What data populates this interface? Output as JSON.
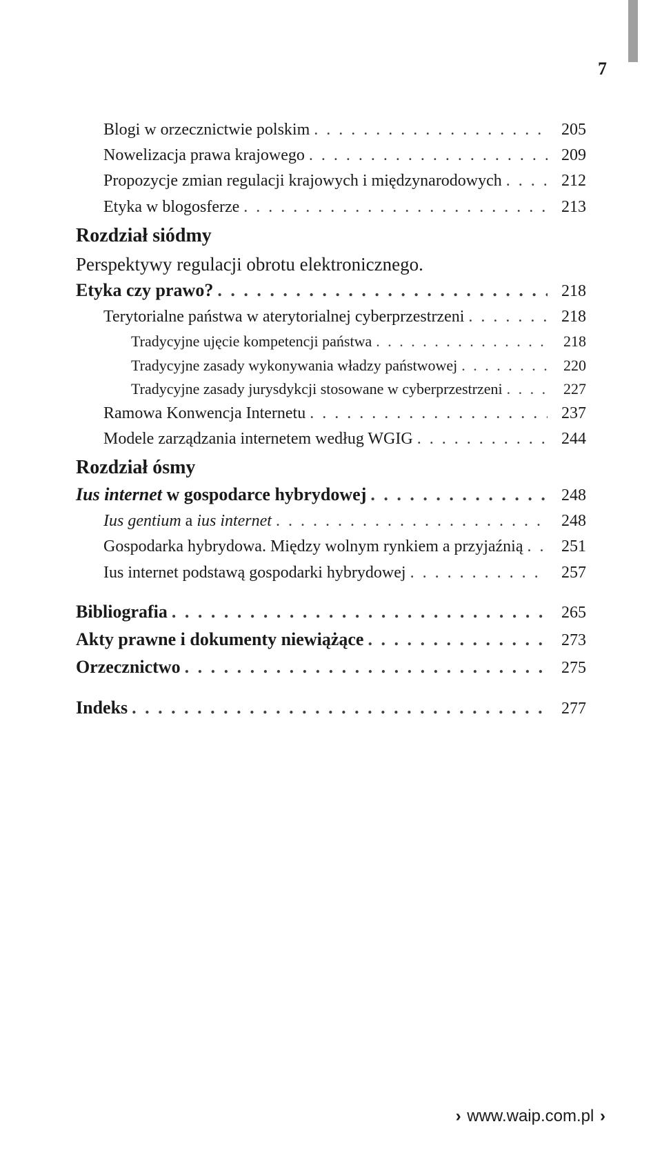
{
  "page_number": "7",
  "footer_url": "www.waip.com.pl",
  "fonts": {
    "body_family": "Georgia/serif",
    "footer_family": "Arial/sans-serif",
    "base_size_pt": 12
  },
  "colors": {
    "text": "#1a1a1a",
    "dots": "#404040",
    "tab": "#a0a0a0",
    "background": "#ffffff"
  },
  "entries": [
    {
      "type": "item",
      "level": 1,
      "label": "Blogi w orzecznictwie polskim",
      "page": "205"
    },
    {
      "type": "item",
      "level": 1,
      "label": "Nowelizacja prawa krajowego",
      "page": "209"
    },
    {
      "type": "item",
      "level": 1,
      "label": "Propozycje zmian regulacji krajowych i międzynarodowych",
      "page": "212"
    },
    {
      "type": "item",
      "level": 1,
      "label": "Etyka w blogosferze",
      "page": "213"
    },
    {
      "type": "chapter",
      "heading": "Rozdział siódmy",
      "subtitle": "Perspektywy regulacji obrotu elektronicznego."
    },
    {
      "type": "item",
      "level": 0,
      "label": "Etyka czy prawo?",
      "page": "218"
    },
    {
      "type": "item",
      "level": 1,
      "label": "Terytorialne państwa w aterytorialnej cyberprzestrzeni",
      "page": "218"
    },
    {
      "type": "item",
      "level": 2,
      "label": "Tradycyjne ujęcie kompetencji państwa",
      "page": "218"
    },
    {
      "type": "item",
      "level": 2,
      "label": "Tradycyjne zasady wykonywania władzy państwowej",
      "page": "220"
    },
    {
      "type": "item",
      "level": 2,
      "label": "Tradycyjne zasady jurysdykcji stosowane w cyberprzestrzeni",
      "page": "227"
    },
    {
      "type": "item",
      "level": 1,
      "label": "Ramowa Konwencja Internetu",
      "page": "237"
    },
    {
      "type": "item",
      "level": 1,
      "label": "Modele zarządzania internetem według WGIG",
      "page": "244"
    },
    {
      "type": "chapter",
      "heading": "Rozdział ósmy"
    },
    {
      "type": "item",
      "level": 0,
      "label_html": "<span class=\"italic\">Ius internet</span> w gospodarce hybrydowej",
      "page": "248"
    },
    {
      "type": "item",
      "level": 1,
      "label_html": "<span class=\"italic\">Ius gentium</span> a <span class=\"italic\">ius internet</span>",
      "page": "248"
    },
    {
      "type": "item",
      "level": 1,
      "label": "Gospodarka hybrydowa. Między wolnym rynkiem a przyjaźnią",
      "page": "251"
    },
    {
      "type": "item",
      "level": 1,
      "label": "Ius internet podstawą gospodarki hybrydowej",
      "page": "257"
    },
    {
      "type": "gap"
    },
    {
      "type": "item",
      "level": 0,
      "label": "Bibliografia",
      "page": "265"
    },
    {
      "type": "item",
      "level": 0,
      "label": "Akty prawne i dokumenty niewiążące",
      "page": "273"
    },
    {
      "type": "item",
      "level": 0,
      "label": "Orzecznictwo",
      "page": "275"
    },
    {
      "type": "gap"
    },
    {
      "type": "item",
      "level": 0,
      "label": "Indeks",
      "page": "277"
    }
  ]
}
